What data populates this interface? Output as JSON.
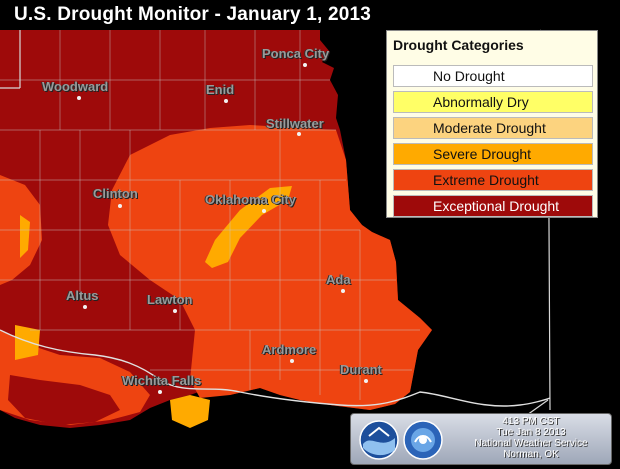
{
  "title": "U.S. Drought Monitor - January 1, 2013",
  "legend": {
    "title": "Drought Categories",
    "items": [
      {
        "label": "No Drought",
        "color": "#ffffff",
        "text_color": "#111111"
      },
      {
        "label": "Abnormally Dry",
        "color": "#ffff66",
        "text_color": "#111111"
      },
      {
        "label": "Moderate Drought",
        "color": "#fcd37f",
        "text_color": "#111111"
      },
      {
        "label": "Severe Drought",
        "color": "#ffaa00",
        "text_color": "#111111"
      },
      {
        "label": "Extreme Drought",
        "color": "#ee4411",
        "text_color": "#111111"
      },
      {
        "label": "Exceptional Drought",
        "color": "#9e0a0a",
        "text_color": "#ffffff"
      }
    ]
  },
  "cities": [
    {
      "name": "Ponca City"
    },
    {
      "name": "Woodward"
    },
    {
      "name": "Enid"
    },
    {
      "name": "Stillwater"
    },
    {
      "name": "Clinton"
    },
    {
      "name": "Oklahoma City"
    },
    {
      "name": "Ada"
    },
    {
      "name": "Altus"
    },
    {
      "name": "Lawton"
    },
    {
      "name": "Ardmore"
    },
    {
      "name": "Durant"
    },
    {
      "name": "Wichita Falls"
    }
  ],
  "footer": {
    "time": "413 PM CST",
    "date": "Tue Jan 8 2013",
    "office": "National Weather Service",
    "location": "Norman, OK"
  },
  "colors": {
    "exceptional": "#9e0a0a",
    "extreme": "#ee4411",
    "severe": "#ffaa00",
    "background": "#000000",
    "county_lines": "#c8c8c8"
  }
}
